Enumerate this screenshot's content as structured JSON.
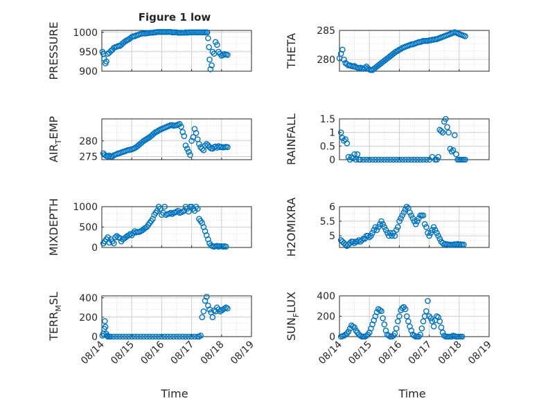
{
  "title": "Figure 1 low",
  "xlabel": "Time",
  "x_ticks": [
    "08/14",
    "08/15",
    "08/16",
    "08/17",
    "08/18",
    "08/19"
  ],
  "marker_color": "#0072BD",
  "chart_data": [
    {
      "type": "scatter",
      "name": "PRESSURE",
      "ylabel": "PRESSURE",
      "title": "Figure 1 low",
      "xlim": [
        0,
        5
      ],
      "ylim": [
        900,
        1005
      ],
      "yticks": [
        900,
        950,
        1000
      ],
      "grid": true,
      "x": [
        0.02,
        0.05,
        0.08,
        0.12,
        0.15,
        0.2,
        0.25,
        0.3,
        0.35,
        0.4,
        0.45,
        0.5,
        0.55,
        0.6,
        0.65,
        0.7,
        0.75,
        0.8,
        0.85,
        0.9,
        0.95,
        1.0,
        1.05,
        1.1,
        1.15,
        1.2,
        1.25,
        1.3,
        1.35,
        1.4,
        1.45,
        1.5,
        1.55,
        1.6,
        1.65,
        1.7,
        1.75,
        1.8,
        1.85,
        1.9,
        1.95,
        2.0,
        2.05,
        2.1,
        2.15,
        2.2,
        2.25,
        2.3,
        2.35,
        2.4,
        2.45,
        2.5,
        2.55,
        2.6,
        2.65,
        2.7,
        2.75,
        2.8,
        2.85,
        2.9,
        2.95,
        3.0,
        3.05,
        3.1,
        3.15,
        3.2,
        3.25,
        3.3,
        3.35,
        3.4,
        3.45,
        3.5,
        3.52,
        3.55,
        3.58,
        3.6,
        3.63,
        3.67,
        3.7,
        3.75,
        3.8,
        3.85,
        3.9,
        3.95,
        4.0,
        4.05,
        4.1,
        4.15,
        4.2
      ],
      "y": [
        950,
        945,
        932,
        920,
        925,
        945,
        948,
        952,
        955,
        960,
        962,
        963,
        965,
        965,
        968,
        972,
        975,
        978,
        980,
        982,
        985,
        988,
        990,
        990,
        992,
        993,
        995,
        996,
        997,
        997,
        997,
        998,
        998,
        999,
        999,
        999,
        1000,
        1000,
        1001,
        1001,
        1001,
        1001,
        1001,
        1001,
        1001,
        1001,
        1001,
        1001,
        1000,
        1000,
        1000,
        1000,
        999,
        999,
        999,
        999,
        999,
        1000,
        999,
        1000,
        1000,
        1000,
        1000,
        1000,
        1000,
        1000,
        1000,
        1000,
        1000,
        1000,
        1000,
        1000,
        1000,
        985,
        962,
        930,
        905,
        915,
        950,
        945,
        975,
        968,
        950,
        945,
        940,
        942,
        944,
        943,
        942
      ]
    },
    {
      "type": "scatter",
      "name": "THETA",
      "ylabel": "THETA",
      "xlim": [
        0,
        5
      ],
      "ylim": [
        278,
        285
      ],
      "yticks": [
        280,
        285
      ],
      "grid": true,
      "x": [
        0.0,
        0.05,
        0.1,
        0.15,
        0.2,
        0.25,
        0.3,
        0.35,
        0.4,
        0.45,
        0.5,
        0.55,
        0.6,
        0.65,
        0.7,
        0.75,
        0.8,
        0.85,
        0.9,
        0.95,
        1.0,
        1.05,
        1.1,
        1.15,
        1.2,
        1.25,
        1.3,
        1.35,
        1.4,
        1.45,
        1.5,
        1.55,
        1.6,
        1.65,
        1.7,
        1.75,
        1.8,
        1.85,
        1.9,
        1.95,
        2.0,
        2.05,
        2.1,
        2.15,
        2.2,
        2.25,
        2.3,
        2.35,
        2.4,
        2.45,
        2.5,
        2.55,
        2.6,
        2.65,
        2.7,
        2.75,
        2.8,
        2.85,
        2.9,
        2.95,
        3.0,
        3.05,
        3.1,
        3.15,
        3.2,
        3.25,
        3.3,
        3.35,
        3.4,
        3.45,
        3.5,
        3.55,
        3.6,
        3.65,
        3.7,
        3.75,
        3.8,
        3.85,
        3.9,
        3.95,
        4.0,
        4.05,
        4.1,
        4.15,
        4.2
      ],
      "y": [
        280.2,
        281.0,
        281.7,
        280.0,
        279.4,
        279.2,
        279.0,
        279.0,
        278.9,
        278.8,
        278.9,
        278.7,
        278.6,
        278.5,
        278.6,
        278.5,
        278.4,
        278.6,
        278.8,
        278.5,
        278.3,
        278.2,
        278.2,
        278.4,
        278.6,
        278.8,
        279.0,
        279.2,
        279.4,
        279.6,
        279.8,
        280.0,
        280.2,
        280.4,
        280.6,
        280.8,
        281.0,
        281.2,
        281.4,
        281.5,
        281.7,
        281.8,
        282.0,
        282.1,
        282.2,
        282.3,
        282.4,
        282.5,
        282.6,
        282.6,
        282.7,
        282.8,
        282.9,
        283.0,
        283.0,
        283.1,
        283.2,
        283.2,
        283.2,
        283.2,
        283.3,
        283.3,
        283.4,
        283.4,
        283.5,
        283.5,
        283.6,
        283.7,
        283.8,
        283.9,
        284.0,
        284.1,
        284.2,
        284.3,
        284.4,
        284.5,
        284.6,
        284.7,
        284.6,
        284.5,
        284.4,
        284.3,
        284.2,
        284.1,
        284.0
      ]
    },
    {
      "type": "scatter",
      "name": "AIR_TEMP",
      "ylabel": "AIR_TEMP",
      "xlim": [
        0,
        5
      ],
      "ylim": [
        274,
        287
      ],
      "yticks": [
        275,
        280
      ],
      "grid": true,
      "x": [
        0.05,
        0.1,
        0.15,
        0.2,
        0.25,
        0.3,
        0.35,
        0.4,
        0.45,
        0.5,
        0.55,
        0.6,
        0.65,
        0.7,
        0.75,
        0.8,
        0.85,
        0.9,
        0.95,
        1.0,
        1.05,
        1.1,
        1.15,
        1.2,
        1.25,
        1.3,
        1.35,
        1.4,
        1.45,
        1.5,
        1.55,
        1.6,
        1.65,
        1.7,
        1.75,
        1.8,
        1.85,
        1.9,
        1.95,
        2.0,
        2.05,
        2.1,
        2.15,
        2.2,
        2.25,
        2.3,
        2.35,
        2.4,
        2.45,
        2.5,
        2.55,
        2.6,
        2.65,
        2.7,
        2.75,
        2.8,
        2.85,
        2.9,
        2.95,
        3.0,
        3.05,
        3.1,
        3.15,
        3.2,
        3.25,
        3.3,
        3.35,
        3.4,
        3.45,
        3.5,
        3.55,
        3.6,
        3.65,
        3.7,
        3.75,
        3.8,
        3.85,
        3.9,
        3.95,
        4.0,
        4.05,
        4.1,
        4.15,
        4.2
      ],
      "y": [
        276.0,
        275.5,
        275.2,
        275.0,
        275.3,
        275.0,
        275.0,
        275.4,
        275.6,
        275.8,
        276.0,
        276.1,
        276.3,
        276.5,
        276.6,
        276.8,
        277.0,
        277.1,
        277.2,
        277.3,
        277.5,
        277.7,
        278.0,
        278.4,
        278.8,
        279.2,
        279.6,
        280.0,
        280.3,
        280.6,
        280.9,
        281.2,
        281.6,
        282.0,
        282.4,
        282.8,
        283.0,
        283.3,
        283.6,
        283.8,
        284.0,
        284.2,
        284.4,
        284.6,
        284.8,
        285.0,
        285.0,
        284.8,
        284.9,
        285.0,
        285.2,
        285.4,
        284.5,
        282.8,
        281.5,
        278.5,
        277.5,
        276.5,
        275.5,
        280.0,
        281.2,
        283.8,
        282.5,
        280.5,
        279.0,
        278.0,
        277.5,
        277.0,
        278.5,
        279.0,
        278.6,
        278.0,
        277.6,
        277.5,
        278.0,
        278.2,
        277.8,
        278.3,
        278.0,
        278.1,
        277.9,
        278.0,
        278.1,
        278.0
      ]
    },
    {
      "type": "scatter",
      "name": "RAINFALL",
      "ylabel": "RAINFALL",
      "xlim": [
        0,
        5
      ],
      "ylim": [
        0,
        1.5
      ],
      "yticks": [
        0,
        0.5,
        1,
        1.5
      ],
      "grid": true,
      "x": [
        0.05,
        0.1,
        0.15,
        0.2,
        0.25,
        0.3,
        0.35,
        0.4,
        0.45,
        0.5,
        0.55,
        0.6,
        0.65,
        0.7,
        0.8,
        0.9,
        1.0,
        1.1,
        1.2,
        1.3,
        1.4,
        1.5,
        1.6,
        1.7,
        1.8,
        1.9,
        2.0,
        2.1,
        2.2,
        2.3,
        2.4,
        2.5,
        2.6,
        2.7,
        2.8,
        2.9,
        3.0,
        3.1,
        3.2,
        3.25,
        3.3,
        3.35,
        3.4,
        3.45,
        3.5,
        3.55,
        3.6,
        3.65,
        3.7,
        3.75,
        3.8,
        3.85,
        3.9,
        3.95,
        4.0,
        4.05,
        4.1,
        4.15,
        4.2
      ],
      "y": [
        1.0,
        0.8,
        0.7,
        0.75,
        0.6,
        0.1,
        0.0,
        0.1,
        0.05,
        0.2,
        0.0,
        0.2,
        0.0,
        0.0,
        0.0,
        0.0,
        0.0,
        0.0,
        0.0,
        0.0,
        0.0,
        0.0,
        0.0,
        0.0,
        0.0,
        0.0,
        0.0,
        0.0,
        0.0,
        0.0,
        0.0,
        0.0,
        0.0,
        0.0,
        0.0,
        0.0,
        0.0,
        0.1,
        0.0,
        0.0,
        0.1,
        1.1,
        1.05,
        1.0,
        1.4,
        1.5,
        1.2,
        1.0,
        0.4,
        0.3,
        0.35,
        0.9,
        0.2,
        0.0,
        0.0,
        0.0,
        0.0,
        0.0,
        0.0
      ]
    },
    {
      "type": "scatter",
      "name": "MIXDEPTH",
      "ylabel": "MIXDEPTH",
      "xlim": [
        0,
        5
      ],
      "ylim": [
        0,
        1000
      ],
      "yticks": [
        0,
        500,
        1000
      ],
      "grid": true,
      "x": [
        0.05,
        0.1,
        0.15,
        0.2,
        0.25,
        0.3,
        0.35,
        0.4,
        0.45,
        0.5,
        0.55,
        0.6,
        0.65,
        0.7,
        0.75,
        0.8,
        0.85,
        0.9,
        0.95,
        1.0,
        1.05,
        1.1,
        1.15,
        1.2,
        1.25,
        1.3,
        1.35,
        1.4,
        1.45,
        1.5,
        1.55,
        1.6,
        1.65,
        1.7,
        1.75,
        1.8,
        1.85,
        1.9,
        1.95,
        2.0,
        2.05,
        2.1,
        2.15,
        2.2,
        2.25,
        2.3,
        2.35,
        2.4,
        2.45,
        2.5,
        2.55,
        2.6,
        2.65,
        2.7,
        2.75,
        2.8,
        2.85,
        2.9,
        2.95,
        3.0,
        3.05,
        3.1,
        3.15,
        3.2,
        3.25,
        3.3,
        3.35,
        3.4,
        3.45,
        3.5,
        3.55,
        3.6,
        3.65,
        3.7,
        3.75,
        3.8,
        3.85,
        3.9,
        3.95,
        4.0,
        4.05,
        4.1,
        4.15
      ],
      "y": [
        100,
        150,
        200,
        250,
        120,
        200,
        150,
        100,
        250,
        280,
        250,
        230,
        150,
        200,
        220,
        250,
        280,
        300,
        330,
        300,
        350,
        400,
        370,
        380,
        380,
        400,
        420,
        450,
        480,
        500,
        550,
        600,
        650,
        700,
        800,
        850,
        900,
        1000,
        950,
        800,
        850,
        1000,
        800,
        820,
        830,
        850,
        820,
        850,
        860,
        880,
        900,
        850,
        860,
        880,
        900,
        1000,
        950,
        880,
        1000,
        1000,
        950,
        900,
        1000,
        950,
        700,
        650,
        600,
        500,
        400,
        300,
        200,
        100,
        50,
        30,
        20,
        30,
        40,
        20,
        30,
        30,
        20,
        30,
        20
      ]
    },
    {
      "type": "scatter",
      "name": "H2OMIXRA",
      "ylabel": "H2OMIXRA",
      "xlim": [
        0,
        5
      ],
      "ylim": [
        4.6,
        6.0
      ],
      "yticks": [
        5,
        5.5,
        6
      ],
      "grid": true,
      "x": [
        0.05,
        0.1,
        0.15,
        0.2,
        0.25,
        0.3,
        0.35,
        0.4,
        0.45,
        0.5,
        0.55,
        0.6,
        0.65,
        0.7,
        0.75,
        0.8,
        0.85,
        0.9,
        0.95,
        1.0,
        1.05,
        1.1,
        1.15,
        1.2,
        1.25,
        1.3,
        1.35,
        1.4,
        1.45,
        1.5,
        1.55,
        1.6,
        1.65,
        1.7,
        1.75,
        1.8,
        1.85,
        1.9,
        1.95,
        2.0,
        2.05,
        2.1,
        2.15,
        2.2,
        2.25,
        2.3,
        2.35,
        2.4,
        2.45,
        2.5,
        2.55,
        2.6,
        2.65,
        2.7,
        2.75,
        2.8,
        2.85,
        2.9,
        2.95,
        3.0,
        3.05,
        3.1,
        3.15,
        3.2,
        3.25,
        3.3,
        3.35,
        3.4,
        3.45,
        3.5,
        3.55,
        3.6,
        3.65,
        3.7,
        3.75,
        3.8,
        3.85,
        3.9,
        3.95,
        4.0,
        4.05,
        4.1,
        4.15
      ],
      "y": [
        4.85,
        4.8,
        4.75,
        4.7,
        4.65,
        4.7,
        4.75,
        4.8,
        4.8,
        4.75,
        4.8,
        4.8,
        4.85,
        4.8,
        4.85,
        4.9,
        4.9,
        5.0,
        5.0,
        4.95,
        5.0,
        5.1,
        5.2,
        5.3,
        5.2,
        5.3,
        5.4,
        5.5,
        5.4,
        5.3,
        5.2,
        5.1,
        5.0,
        5.1,
        5.0,
        5.1,
        5.0,
        5.2,
        5.3,
        5.5,
        5.6,
        5.7,
        5.8,
        5.9,
        6.0,
        5.95,
        5.8,
        5.7,
        5.6,
        5.5,
        5.4,
        5.5,
        5.6,
        5.7,
        5.7,
        5.7,
        5.4,
        5.3,
        5.1,
        5.0,
        5.1,
        5.2,
        5.3,
        5.2,
        5.1,
        5.0,
        4.9,
        4.8,
        4.75,
        4.7,
        4.72,
        4.71,
        4.7,
        4.7,
        4.69,
        4.7,
        4.71,
        4.7,
        4.72,
        4.7,
        4.71,
        4.7,
        4.7
      ]
    },
    {
      "type": "scatter",
      "name": "TERR_MSL",
      "ylabel": "TERR_MSL",
      "xlim": [
        0,
        5
      ],
      "ylim": [
        0,
        420
      ],
      "yticks": [
        0,
        200,
        400
      ],
      "grid": true,
      "x": [
        0.02,
        0.05,
        0.08,
        0.1,
        0.12,
        0.15,
        0.18,
        0.2,
        0.25,
        0.3,
        0.4,
        0.5,
        0.6,
        0.7,
        0.8,
        0.9,
        1.0,
        1.1,
        1.2,
        1.3,
        1.4,
        1.5,
        1.6,
        1.7,
        1.8,
        1.9,
        2.0,
        2.1,
        2.2,
        2.3,
        2.4,
        2.5,
        2.6,
        2.7,
        2.8,
        2.9,
        3.0,
        3.1,
        3.2,
        3.25,
        3.3,
        3.35,
        3.4,
        3.45,
        3.5,
        3.55,
        3.6,
        3.65,
        3.7,
        3.75,
        3.8,
        3.85,
        3.9,
        3.95,
        4.0,
        4.05,
        4.1,
        4.15,
        4.2
      ],
      "y": [
        10,
        30,
        80,
        160,
        100,
        30,
        10,
        0,
        0,
        0,
        0,
        0,
        0,
        0,
        0,
        0,
        0,
        0,
        0,
        0,
        0,
        0,
        0,
        0,
        0,
        0,
        0,
        0,
        0,
        0,
        0,
        0,
        0,
        0,
        0,
        0,
        0,
        0,
        0,
        0,
        10,
        200,
        260,
        370,
        410,
        320,
        280,
        250,
        200,
        270,
        260,
        300,
        280,
        260,
        270,
        280,
        290,
        300,
        290
      ]
    },
    {
      "type": "scatter",
      "name": "SUN_FLUX",
      "ylabel": "SUN_FLUX",
      "xlim": [
        0,
        5
      ],
      "ylim": [
        0,
        400
      ],
      "yticks": [
        0,
        200,
        400
      ],
      "grid": true,
      "x": [
        0.05,
        0.1,
        0.15,
        0.2,
        0.25,
        0.3,
        0.35,
        0.4,
        0.45,
        0.5,
        0.55,
        0.6,
        0.65,
        0.7,
        0.75,
        0.8,
        0.85,
        0.9,
        0.95,
        1.0,
        1.05,
        1.1,
        1.15,
        1.2,
        1.25,
        1.3,
        1.35,
        1.4,
        1.45,
        1.5,
        1.55,
        1.6,
        1.65,
        1.7,
        1.75,
        1.8,
        1.85,
        1.9,
        1.95,
        2.0,
        2.05,
        2.1,
        2.15,
        2.2,
        2.25,
        2.3,
        2.35,
        2.4,
        2.45,
        2.5,
        2.55,
        2.6,
        2.65,
        2.7,
        2.75,
        2.8,
        2.85,
        2.9,
        2.95,
        3.0,
        3.05,
        3.1,
        3.15,
        3.2,
        3.25,
        3.3,
        3.35,
        3.4,
        3.45,
        3.5,
        3.55,
        3.6,
        3.65,
        3.7,
        3.75,
        3.8,
        3.85,
        3.9,
        3.95,
        4.0,
        4.05,
        4.1
      ],
      "y": [
        0,
        5,
        10,
        20,
        30,
        50,
        80,
        110,
        100,
        90,
        60,
        40,
        20,
        10,
        0,
        0,
        0,
        10,
        20,
        40,
        80,
        120,
        160,
        200,
        240,
        270,
        260,
        250,
        180,
        120,
        60,
        20,
        10,
        0,
        0,
        10,
        30,
        80,
        150,
        200,
        260,
        280,
        290,
        270,
        200,
        150,
        100,
        60,
        20,
        10,
        0,
        0,
        0,
        20,
        80,
        150,
        200,
        250,
        350,
        200,
        180,
        150,
        100,
        160,
        200,
        190,
        150,
        90,
        40,
        10,
        0,
        0,
        0,
        0,
        0,
        10,
        5,
        0,
        0,
        0,
        0,
        0
      ]
    }
  ]
}
